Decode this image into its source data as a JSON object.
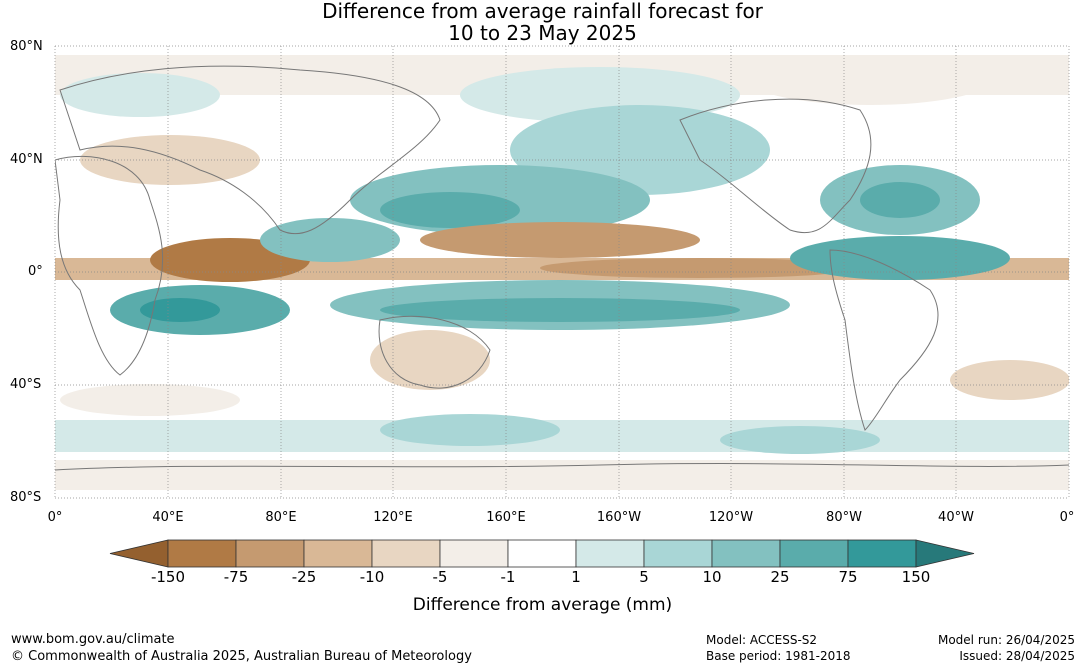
{
  "title": {
    "line1": "Difference from average rainfall forecast for",
    "line2": "10 to 23 May 2025"
  },
  "map": {
    "lat_labels": [
      "80°N",
      "40°N",
      "0°",
      "40°S",
      "80°S"
    ],
    "lon_labels": [
      "0°",
      "40°E",
      "80°E",
      "120°E",
      "160°E",
      "160°W",
      "120°W",
      "80°W",
      "40°W",
      "0°"
    ]
  },
  "legend": {
    "title": "Difference from average (mm)",
    "tick_labels": [
      "-150",
      "-75",
      "-25",
      "-10",
      "-5",
      "-1",
      "1",
      "5",
      "10",
      "25",
      "75",
      "150"
    ],
    "colors": [
      "#94602f",
      "#b07a45",
      "#c59a70",
      "#d9b896",
      "#e8d6c2",
      "#f3eee8",
      "#ffffff",
      "#d4e9e8",
      "#a9d6d6",
      "#83c1c0",
      "#5aacab",
      "#33999a",
      "#27797a"
    ]
  },
  "footer": {
    "url": "www.bom.gov.au/climate",
    "copyright": "© Commonwealth of Australia 2025, Australian Bureau of Meteorology",
    "model": "Model: ACCESS-S2",
    "base_period": "Base period: 1981-2018",
    "model_run": "Model run: 26/04/2025",
    "issued": "Issued: 28/04/2025"
  }
}
